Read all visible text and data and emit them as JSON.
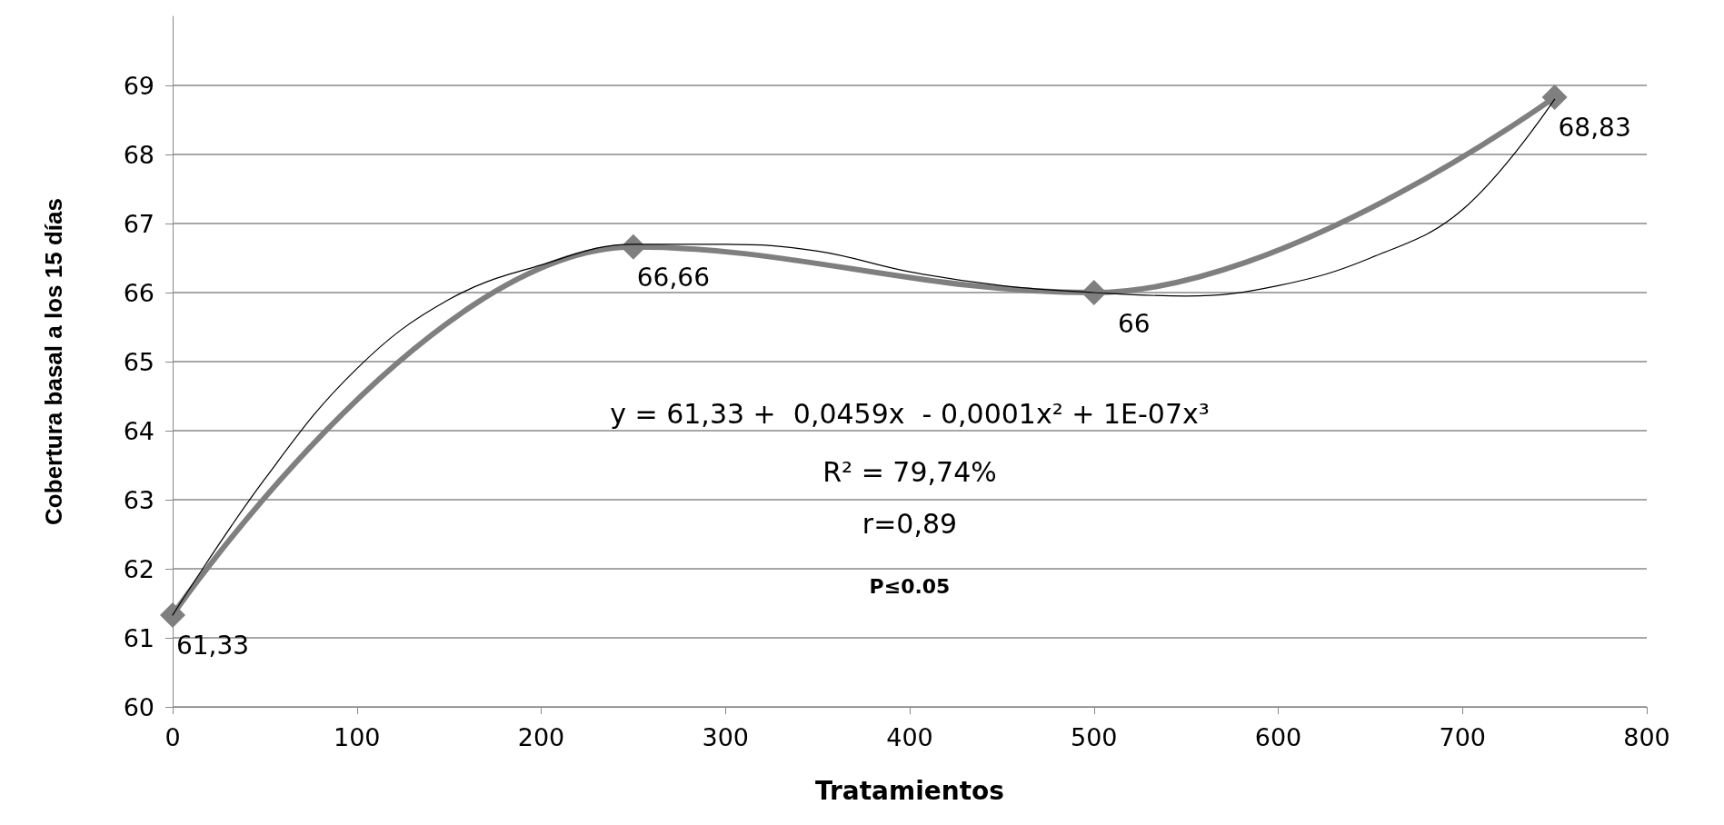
{
  "chart_data": {
    "type": "line",
    "xlabel": "Tratamientos",
    "ylabel": "Cobertura basal a los 15 días",
    "x": [
      0,
      250,
      500,
      750
    ],
    "xlim": [
      0,
      800
    ],
    "xticks": [
      0,
      100,
      200,
      300,
      400,
      500,
      600,
      700,
      800
    ],
    "ylim": [
      60,
      70
    ],
    "yticks": [
      60,
      61,
      62,
      63,
      64,
      65,
      66,
      67,
      68,
      69
    ],
    "grid": "y",
    "series": [
      {
        "color": "#7f7f7f",
        "values": [
          61.33,
          66.66,
          66,
          68.83
        ],
        "marker": "diamond",
        "value_labels": [
          "61,33",
          "66,66",
          "66",
          "68,83"
        ]
      },
      {
        "type": "line",
        "color": "#000000",
        "marker": "none",
        "x": [
          0,
          50,
          100,
          150,
          200,
          250,
          300,
          350,
          400,
          450,
          500,
          550,
          600,
          650,
          700,
          750
        ],
        "values": [
          61.33,
          63.3,
          64.9,
          65.9,
          66.4,
          66.7,
          66.7,
          66.6,
          66.3,
          66.1,
          66.0,
          65.95,
          66.1,
          66.5,
          67.2,
          68.8
        ]
      }
    ],
    "annotations": [
      "y = 61,33 +  0,0459x  - 0,0001x² + 1E-07x³",
      "R² = 79,74%",
      "r=0,89",
      "P≤0.05"
    ]
  }
}
